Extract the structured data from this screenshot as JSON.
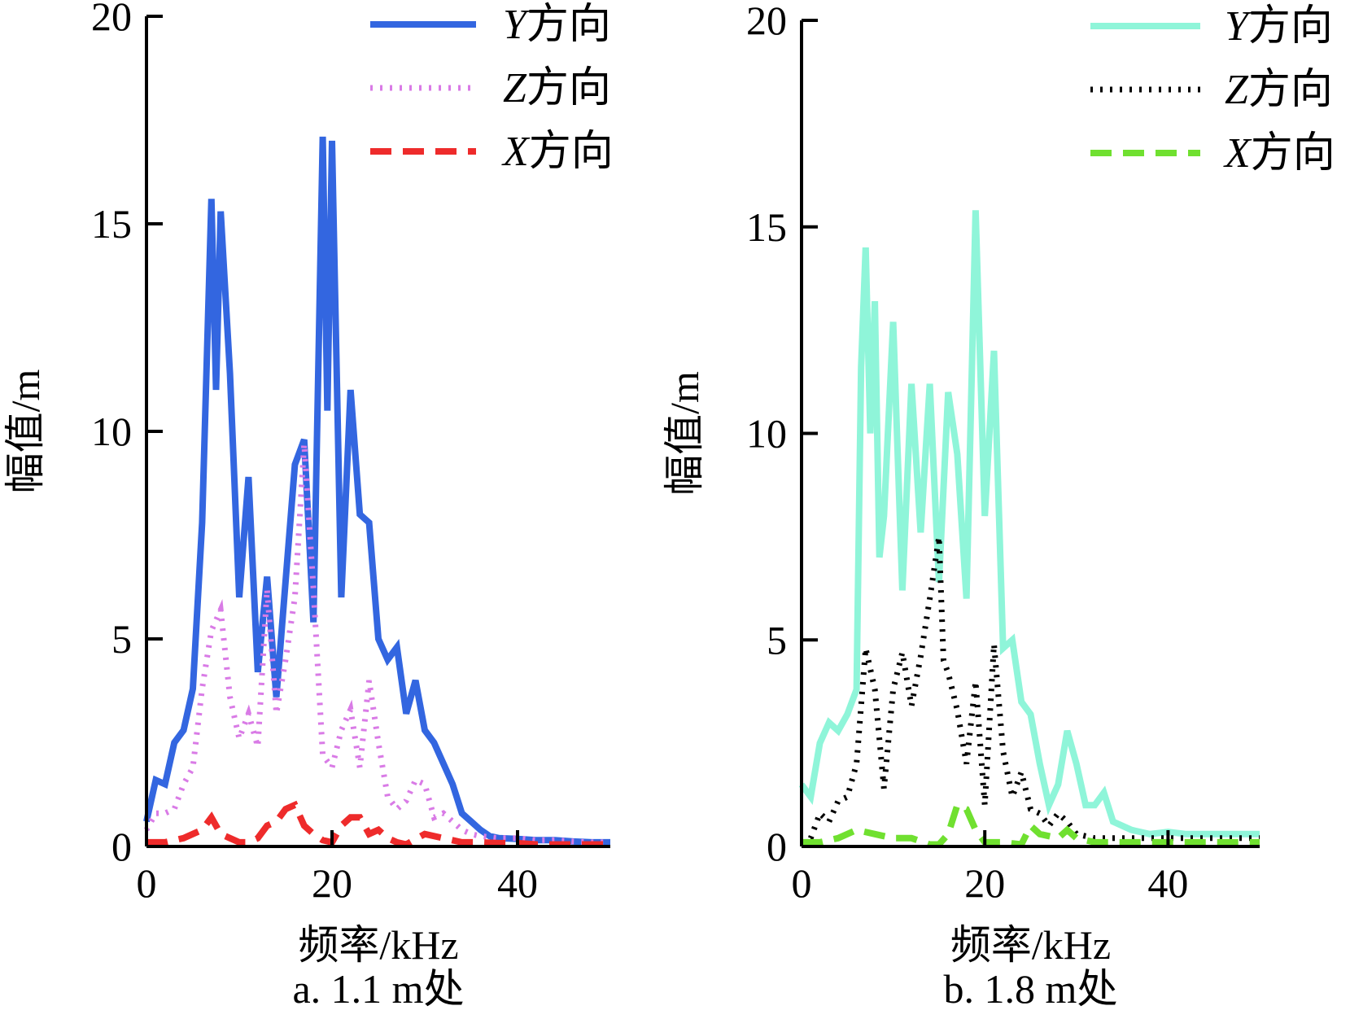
{
  "chart_data": [
    {
      "type": "line",
      "caption": "a. 1.1 m处",
      "xlabel": "频率/kHz",
      "ylabel": "幅值/m",
      "xlim": [
        0,
        50
      ],
      "ylim": [
        0,
        20
      ],
      "xticks": [
        "0",
        "20",
        "40"
      ],
      "yticks": [
        "0",
        "5",
        "10",
        "15",
        "20"
      ],
      "grid": false,
      "legend": "top-right",
      "series": [
        {
          "name": "Y方向",
          "var": "Y",
          "suffix": "方向",
          "style": "solid",
          "color": "#3366e0",
          "x": [
            0,
            1,
            2,
            3,
            4,
            5,
            6,
            7,
            7.5,
            8,
            9,
            10,
            11,
            12,
            13,
            14,
            15,
            16,
            17,
            18,
            19,
            19.5,
            20,
            21,
            22,
            23,
            24,
            25,
            26,
            27,
            28,
            29,
            30,
            31,
            32,
            33,
            34,
            35,
            36,
            37,
            38,
            40,
            42,
            44,
            46,
            48,
            50
          ],
          "values": [
            0.6,
            1.6,
            1.5,
            2.5,
            2.8,
            3.8,
            7.8,
            15.6,
            11.0,
            15.3,
            11.4,
            6.0,
            8.9,
            4.2,
            6.5,
            3.6,
            6.4,
            9.2,
            9.8,
            5.4,
            17.1,
            10.5,
            17.0,
            6.0,
            11.0,
            8.0,
            7.8,
            5.0,
            4.5,
            4.8,
            3.2,
            4.0,
            2.8,
            2.5,
            2.0,
            1.5,
            0.8,
            0.6,
            0.4,
            0.25,
            0.2,
            0.18,
            0.15,
            0.15,
            0.12,
            0.1,
            0.1
          ]
        },
        {
          "name": "Z方向",
          "var": "Z",
          "suffix": "方向",
          "style": "dotted",
          "color": "#d97be6",
          "x": [
            0,
            1,
            2,
            3,
            4,
            5,
            6,
            7,
            8,
            9,
            10,
            11,
            12,
            13,
            14,
            15,
            16,
            17,
            18,
            19,
            20,
            21,
            22,
            23,
            24,
            25,
            26,
            27,
            28,
            29,
            30,
            31,
            32,
            33,
            34,
            35,
            36,
            38,
            40,
            42,
            44,
            46,
            48,
            50
          ],
          "values": [
            0.4,
            0.8,
            0.8,
            0.9,
            1.5,
            1.9,
            3.8,
            5.2,
            5.7,
            3.6,
            2.6,
            3.2,
            2.4,
            6.2,
            3.2,
            4.5,
            6.0,
            9.7,
            6.2,
            2.2,
            1.9,
            2.8,
            3.3,
            1.9,
            4.0,
            2.5,
            1.2,
            0.9,
            1.1,
            1.6,
            1.5,
            0.7,
            0.8,
            0.6,
            0.4,
            0.3,
            0.25,
            0.2,
            0.2,
            0.15,
            0.15,
            0.12,
            0.1,
            0.1
          ]
        },
        {
          "name": "X方向",
          "var": "X",
          "suffix": "方向",
          "style": "dashed",
          "color": "#ee2b2b",
          "x": [
            0,
            2,
            4,
            5,
            6,
            7,
            8,
            9,
            10,
            11,
            12,
            13,
            14,
            15,
            16,
            17,
            18,
            19,
            20,
            21,
            22,
            23,
            24,
            25,
            26,
            27,
            28,
            30,
            32,
            34,
            36,
            38,
            40,
            42,
            44,
            46,
            48,
            50
          ],
          "values": [
            0.1,
            0.1,
            0.2,
            0.3,
            0.4,
            0.7,
            0.3,
            0.2,
            0.1,
            0.1,
            0.2,
            0.5,
            0.6,
            0.9,
            1.0,
            0.5,
            0.3,
            0.15,
            0.1,
            0.5,
            0.7,
            0.7,
            0.3,
            0.4,
            0.2,
            0.1,
            0.05,
            0.3,
            0.2,
            0.1,
            0.1,
            0.08,
            0.08,
            0.05,
            0.05,
            0.05,
            0.05,
            0.05
          ]
        }
      ]
    },
    {
      "type": "line",
      "caption": "b. 1.8 m处",
      "xlabel": "频率/kHz",
      "ylabel": "幅值/m",
      "xlim": [
        0,
        50
      ],
      "ylim": [
        0,
        20
      ],
      "xticks": [
        "0",
        "20",
        "40"
      ],
      "yticks": [
        "0",
        "5",
        "10",
        "15",
        "20"
      ],
      "grid": false,
      "legend": "top-right",
      "series": [
        {
          "name": "Y方向",
          "var": "Y",
          "suffix": "方向",
          "style": "solid",
          "color": "#8ff5d9",
          "x": [
            0,
            1,
            2,
            3,
            4,
            5,
            6,
            6.5,
            7,
            7.5,
            8,
            8.5,
            9,
            10,
            11,
            12,
            13,
            14,
            15,
            16,
            17,
            18,
            19,
            20,
            21,
            22,
            23,
            24,
            25,
            26,
            27,
            28,
            29,
            30,
            31,
            32,
            33,
            34,
            36,
            38,
            40,
            42,
            44,
            46,
            48,
            50
          ],
          "values": [
            1.5,
            1.2,
            2.5,
            3.0,
            2.8,
            3.2,
            3.8,
            11.6,
            14.5,
            10.0,
            13.2,
            7.0,
            8.0,
            12.7,
            6.2,
            11.2,
            7.6,
            11.2,
            6.4,
            11.0,
            9.5,
            6.0,
            15.4,
            8.0,
            12.0,
            4.8,
            5.0,
            3.5,
            3.2,
            2.0,
            1.0,
            1.5,
            2.8,
            2.0,
            1.0,
            1.0,
            1.3,
            0.6,
            0.4,
            0.3,
            0.35,
            0.3,
            0.3,
            0.3,
            0.3,
            0.3
          ]
        },
        {
          "name": "Z方向",
          "var": "Z",
          "suffix": "方向",
          "style": "dotted",
          "color": "#000000",
          "x": [
            0,
            1,
            2,
            3,
            4,
            5,
            6,
            7,
            8,
            9,
            10,
            11,
            12,
            13,
            14,
            15,
            15.5,
            16,
            17,
            18,
            19,
            20,
            21,
            22,
            23,
            24,
            25,
            26,
            27,
            28,
            29,
            30,
            32,
            34,
            36,
            38,
            40,
            42,
            44,
            46,
            48,
            50
          ],
          "values": [
            0.1,
            0.2,
            0.8,
            0.6,
            1.1,
            1.2,
            2.0,
            4.8,
            3.8,
            1.4,
            3.8,
            4.7,
            3.4,
            4.6,
            6.0,
            7.5,
            4.5,
            4.2,
            3.3,
            2.0,
            4.0,
            1.0,
            4.9,
            2.3,
            1.2,
            1.8,
            0.9,
            0.8,
            0.5,
            0.8,
            0.6,
            0.3,
            0.2,
            0.2,
            0.2,
            0.2,
            0.2,
            0.2,
            0.2,
            0.2,
            0.2,
            0.2
          ]
        },
        {
          "name": "X方向",
          "var": "X",
          "suffix": "方向",
          "style": "dashed",
          "color": "#70e030",
          "x": [
            0,
            2,
            4,
            6,
            8,
            10,
            12,
            14,
            15,
            16,
            17,
            18,
            19,
            20,
            22,
            24,
            25,
            26,
            28,
            29,
            30,
            32,
            34,
            36,
            38,
            40,
            42,
            44,
            46,
            48,
            50
          ],
          "values": [
            0.1,
            0.1,
            0.2,
            0.4,
            0.3,
            0.2,
            0.2,
            0.05,
            0.05,
            0.3,
            1.0,
            0.9,
            0.4,
            0.1,
            0.1,
            0.05,
            0.5,
            0.3,
            0.2,
            0.4,
            0.2,
            0.1,
            0.1,
            0.1,
            0.1,
            0.1,
            0.1,
            0.1,
            0.1,
            0.1,
            0.1
          ]
        }
      ]
    }
  ]
}
